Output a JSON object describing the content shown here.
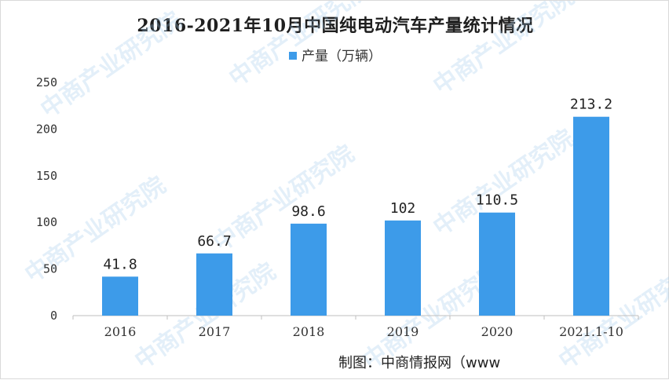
{
  "chart_data": {
    "type": "bar",
    "title": "2016-2021年10月中国纯电动汽车产量统计情况",
    "categories": [
      "2016",
      "2017",
      "2018",
      "2019",
      "2020",
      "2021.1-10"
    ],
    "series": [
      {
        "name": "产量（万辆）",
        "values": [
          41.8,
          66.7,
          98.6,
          102,
          110.5,
          213.2
        ]
      }
    ],
    "data_labels": [
      "41.8",
      "66.7",
      "98.6",
      "102",
      "110.5",
      "213.2"
    ],
    "ylim": [
      0,
      250
    ],
    "yticks": [
      0,
      50,
      100,
      150,
      200,
      250
    ],
    "ytick_labels": [
      "0",
      "50",
      "100",
      "150",
      "200",
      "250"
    ],
    "grid": false,
    "legend_position": "top-center",
    "bar_color": "#3d9be9"
  },
  "watermark_text": "中商产业研究院",
  "credit": "制图：中商情报网（www"
}
